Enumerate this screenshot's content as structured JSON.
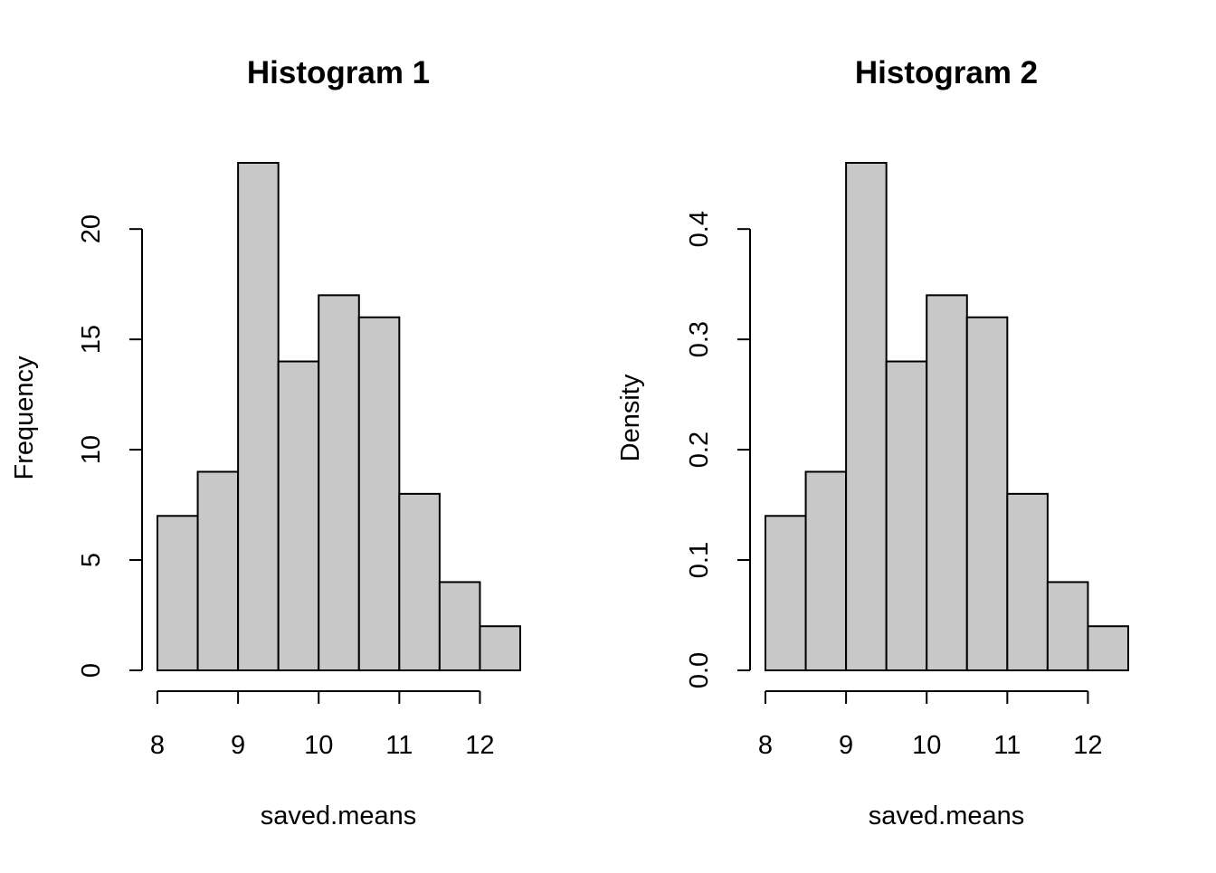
{
  "chart_data": [
    {
      "type": "bar",
      "title": "Histogram 1",
      "xlabel": "saved.means",
      "ylabel": "Frequency",
      "bins": [
        [
          8,
          8.5
        ],
        [
          8.5,
          9
        ],
        [
          9,
          9.5
        ],
        [
          9.5,
          10
        ],
        [
          10,
          10.5
        ],
        [
          10.5,
          11
        ],
        [
          11,
          11.5
        ],
        [
          11.5,
          12
        ],
        [
          12,
          12.5
        ]
      ],
      "values": [
        7,
        9,
        23,
        14,
        17,
        16,
        8,
        4,
        2
      ],
      "xticks": [
        8,
        9,
        10,
        11,
        12
      ],
      "xtick_labels": [
        "8",
        "9",
        "10",
        "11",
        "12"
      ],
      "yticks": [
        0,
        5,
        10,
        15,
        20
      ],
      "ytick_labels": [
        "0",
        "5",
        "10",
        "15",
        "20"
      ],
      "xlim": [
        8,
        12.5
      ],
      "ylim": [
        0,
        23
      ],
      "bar_color": "#c8c8c8",
      "grid": false
    },
    {
      "type": "bar",
      "title": "Histogram 2",
      "xlabel": "saved.means",
      "ylabel": "Density",
      "bins": [
        [
          8,
          8.5
        ],
        [
          8.5,
          9
        ],
        [
          9,
          9.5
        ],
        [
          9.5,
          10
        ],
        [
          10,
          10.5
        ],
        [
          10.5,
          11
        ],
        [
          11,
          11.5
        ],
        [
          11.5,
          12
        ],
        [
          12,
          12.5
        ]
      ],
      "values": [
        0.14,
        0.18,
        0.46,
        0.28,
        0.34,
        0.32,
        0.16,
        0.08,
        0.04
      ],
      "xticks": [
        8,
        9,
        10,
        11,
        12
      ],
      "xtick_labels": [
        "8",
        "9",
        "10",
        "11",
        "12"
      ],
      "yticks": [
        0,
        0.1,
        0.2,
        0.3,
        0.4
      ],
      "ytick_labels": [
        "0.0",
        "0.1",
        "0.2",
        "0.3",
        "0.4"
      ],
      "xlim": [
        8,
        12.5
      ],
      "ylim": [
        0,
        0.46
      ],
      "bar_color": "#c8c8c8",
      "grid": false
    }
  ]
}
